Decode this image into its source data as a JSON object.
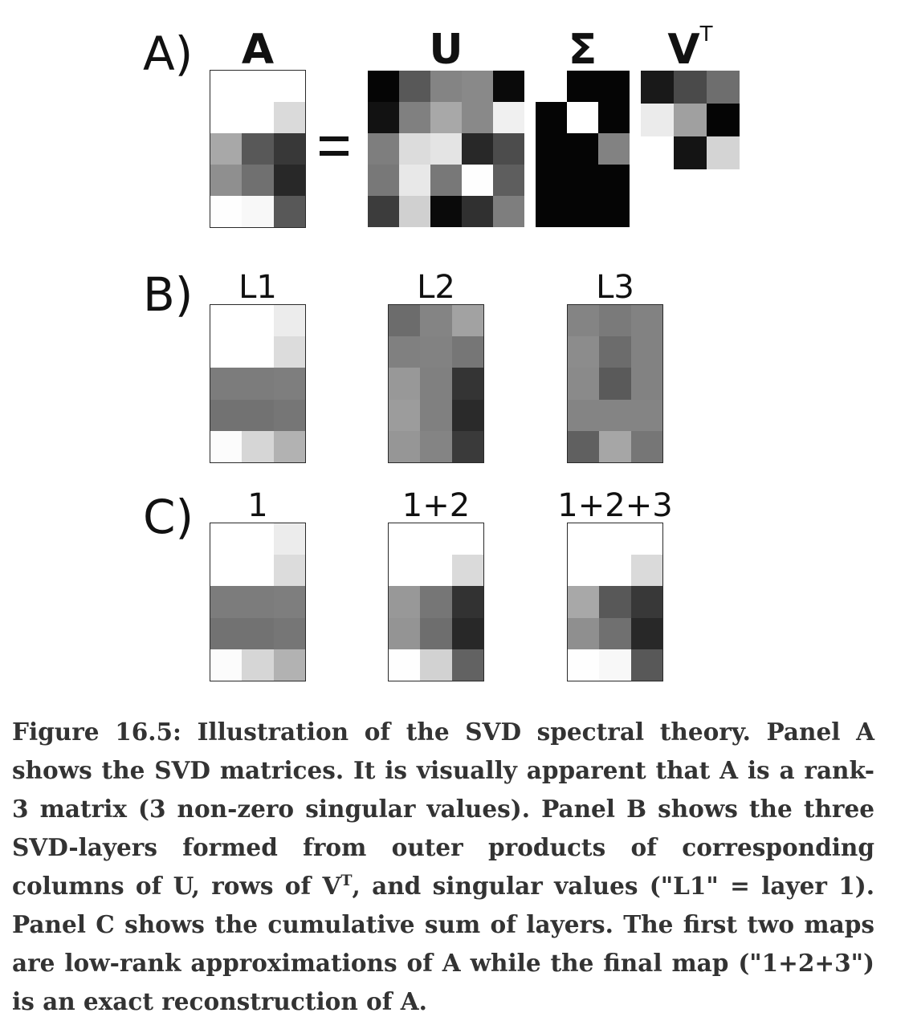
{
  "panels": [
    {
      "key": "A",
      "label": "A)"
    },
    {
      "key": "B",
      "label": "B)"
    },
    {
      "key": "C",
      "label": "C)"
    }
  ],
  "panel_a": {
    "equals_sign": "=",
    "matrices": {
      "A": {
        "title": "A",
        "rows": 5,
        "cols": 3,
        "grays": [
          [
            255,
            255,
            255
          ],
          [
            255,
            255,
            218
          ],
          [
            168,
            88,
            56
          ],
          [
            143,
            112,
            40
          ],
          [
            254,
            248,
            88
          ]
        ]
      },
      "U": {
        "title": "U",
        "rows": 5,
        "cols": 5,
        "grays": [
          [
            5,
            88,
            132,
            137,
            10
          ],
          [
            18,
            128,
            168,
            137,
            240
          ],
          [
            126,
            220,
            228,
            40,
            76
          ],
          [
            120,
            232,
            120,
            254,
            94
          ],
          [
            60,
            208,
            10,
            48,
            126
          ]
        ]
      },
      "Sigma": {
        "title": "Σ",
        "rows": 5,
        "cols": 3,
        "grays": [
          [
            255,
            5,
            5
          ],
          [
            5,
            255,
            5
          ],
          [
            5,
            5,
            130
          ],
          [
            5,
            5,
            5
          ],
          [
            5,
            5,
            5
          ]
        ]
      },
      "VT": {
        "title": "V",
        "title_sup": "T",
        "rows": 3,
        "cols": 3,
        "grays": [
          [
            25,
            74,
            110
          ],
          [
            235,
            160,
            5
          ],
          [
            255,
            20,
            212
          ]
        ]
      }
    }
  },
  "panel_b": {
    "layers": [
      {
        "title": "L1",
        "rows": 5,
        "cols": 3,
        "grays": [
          [
            255,
            255,
            236
          ],
          [
            255,
            255,
            220
          ],
          [
            124,
            124,
            126
          ],
          [
            114,
            114,
            118
          ],
          [
            252,
            214,
            178
          ]
        ]
      },
      {
        "title": "L2",
        "rows": 5,
        "cols": 3,
        "grays": [
          [
            108,
            132,
            162
          ],
          [
            128,
            130,
            118
          ],
          [
            152,
            128,
            52
          ],
          [
            156,
            128,
            42
          ],
          [
            150,
            132,
            58
          ]
        ]
      },
      {
        "title": "L3",
        "rows": 5,
        "cols": 3,
        "grays": [
          [
            132,
            122,
            130
          ],
          [
            140,
            108,
            130
          ],
          [
            138,
            90,
            130
          ],
          [
            132,
            132,
            132
          ],
          [
            96,
            166,
            118
          ]
        ]
      }
    ]
  },
  "panel_c": {
    "sums": [
      {
        "title": "1",
        "rows": 5,
        "cols": 3,
        "grays": [
          [
            255,
            255,
            236
          ],
          [
            255,
            255,
            220
          ],
          [
            124,
            124,
            126
          ],
          [
            114,
            114,
            118
          ],
          [
            252,
            214,
            178
          ]
        ]
      },
      {
        "title": "1+2",
        "rows": 5,
        "cols": 3,
        "grays": [
          [
            255,
            255,
            255
          ],
          [
            255,
            255,
            218
          ],
          [
            152,
            118,
            50
          ],
          [
            148,
            110,
            40
          ],
          [
            254,
            210,
            98
          ]
        ]
      },
      {
        "title": "1+2+3",
        "rows": 5,
        "cols": 3,
        "grays": [
          [
            255,
            255,
            255
          ],
          [
            255,
            255,
            218
          ],
          [
            168,
            88,
            56
          ],
          [
            143,
            112,
            40
          ],
          [
            254,
            248,
            88
          ]
        ]
      }
    ]
  },
  "caption": {
    "part1": "Figure 16.5: Illustration of the SVD spectral theory. Panel A shows the SVD matrices. It is visually apparent that A is a rank-3 matrix (3 non-zero singular values). Panel B shows the three SVD-layers formed from outer products of corresponding columns of U, rows of V",
    "sup": "T",
    "part2": ", and singular values (\"L1\" = layer 1). Panel C shows the cumulative sum of layers. The first two maps are low-rank approximations of A while the final map (\"1+2+3\") is an exact reconstruction of A."
  }
}
